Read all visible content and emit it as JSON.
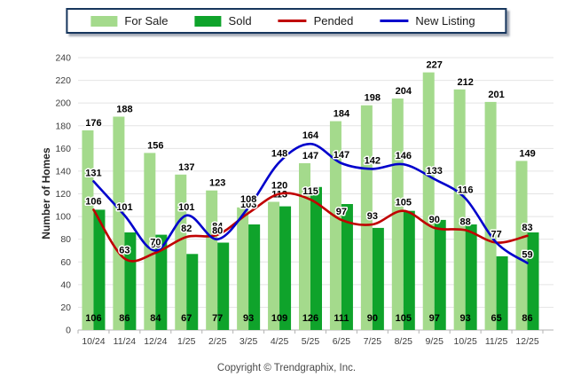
{
  "footer": {
    "copyright": "Copyright © Trendgraphix, Inc."
  },
  "y_axis": {
    "title": "Number of Homes",
    "ticks": [
      0,
      20,
      40,
      60,
      80,
      100,
      120,
      140,
      160,
      180,
      200,
      220,
      240
    ]
  },
  "colors": {
    "for_sale": "#A4DA8C",
    "sold": "#0FA32B",
    "pended": "#C00000",
    "new_listing": "#0000CC",
    "grid": "#e4e4e4",
    "axis": "#b3b3b3",
    "legend_border": "#17365d"
  },
  "chart_data": {
    "type": "bar+line",
    "title": "",
    "categories": [
      "10/24",
      "11/24",
      "12/24",
      "1/25",
      "2/25",
      "3/25",
      "4/25",
      "5/25",
      "6/25",
      "7/25",
      "8/25",
      "9/25",
      "10/25",
      "11/25",
      "12/25"
    ],
    "series": [
      {
        "name": "For Sale",
        "type": "bar",
        "color": "#A4DA8C",
        "values": [
          176,
          188,
          156,
          137,
          123,
          108,
          113,
          147,
          184,
          198,
          204,
          227,
          212,
          201,
          149
        ]
      },
      {
        "name": "Sold",
        "type": "bar",
        "color": "#0FA32B",
        "values": [
          106,
          86,
          84,
          67,
          77,
          93,
          109,
          126,
          111,
          90,
          105,
          97,
          93,
          65,
          86
        ]
      },
      {
        "name": "Pended",
        "type": "line",
        "color": "#C00000",
        "values": [
          106,
          63,
          68,
          82,
          84,
          103,
          120,
          115,
          97,
          93,
          105,
          90,
          88,
          77,
          83
        ]
      },
      {
        "name": "New Listing",
        "type": "line",
        "color": "#0000CC",
        "values": [
          131,
          101,
          70,
          101,
          80,
          108,
          148,
          164,
          147,
          142,
          146,
          133,
          116,
          77,
          59
        ]
      }
    ],
    "ylabel": "Number of Homes",
    "xlabel": "",
    "ylim": [
      0,
      240
    ],
    "ytick_step": 20,
    "grid": true,
    "legend_position": "top"
  }
}
